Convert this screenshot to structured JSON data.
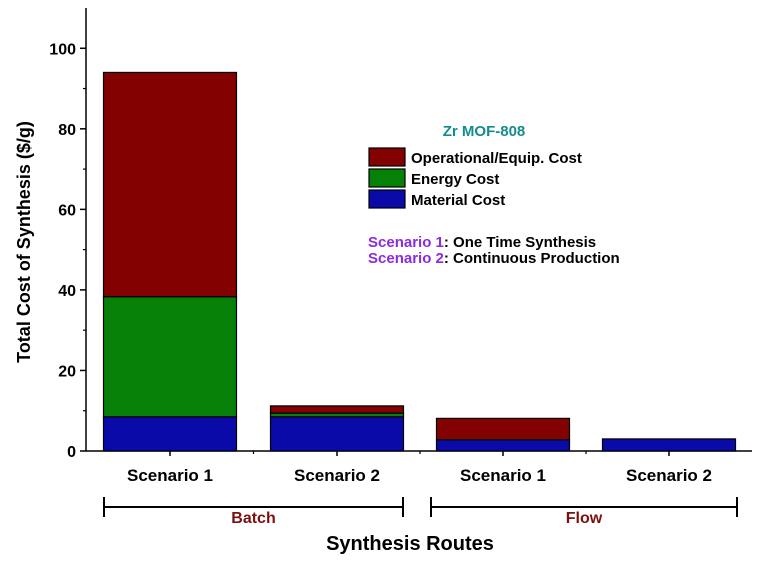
{
  "chart_data": {
    "type": "bar",
    "stacked": true,
    "categories": [
      "Scenario 1",
      "Scenario 2",
      "Scenario 1",
      "Scenario 2"
    ],
    "groups": [
      {
        "label": "Batch",
        "category_indices": [
          0,
          1
        ]
      },
      {
        "label": "Flow",
        "category_indices": [
          2,
          3
        ]
      }
    ],
    "series": [
      {
        "name": "Material Cost",
        "color": "#0a0aa8",
        "values": [
          8.5,
          8.5,
          2.8,
          3.0
        ]
      },
      {
        "name": "Energy Cost",
        "color": "#078007",
        "values": [
          29.8,
          0.9,
          0.0,
          0.0
        ]
      },
      {
        "name": "Operational/Equip. Cost",
        "color": "#840101",
        "values": [
          55.7,
          1.8,
          5.3,
          0.0
        ]
      }
    ],
    "legend_order": [
      "Operational/Equip. Cost",
      "Energy Cost",
      "Material Cost"
    ],
    "legend_title": "Zr MOF-808",
    "legend_placement": "top-right",
    "xlabel": "Synthesis Routes",
    "ylabel": "Total Cost of Synthesis ($/g)",
    "ylim": [
      0,
      110
    ],
    "yticks": [
      0,
      20,
      40,
      60,
      80,
      100
    ],
    "grid": false,
    "notes": [
      {
        "key": "Scenario 1",
        "text": ": One Time Synthesis"
      },
      {
        "key": "Scenario 2",
        "text": ": Continuous Production"
      }
    ],
    "colors": {
      "legend_title": "#138c8c",
      "note_key": "#8a2be2",
      "group_label": "#7b1010"
    }
  }
}
